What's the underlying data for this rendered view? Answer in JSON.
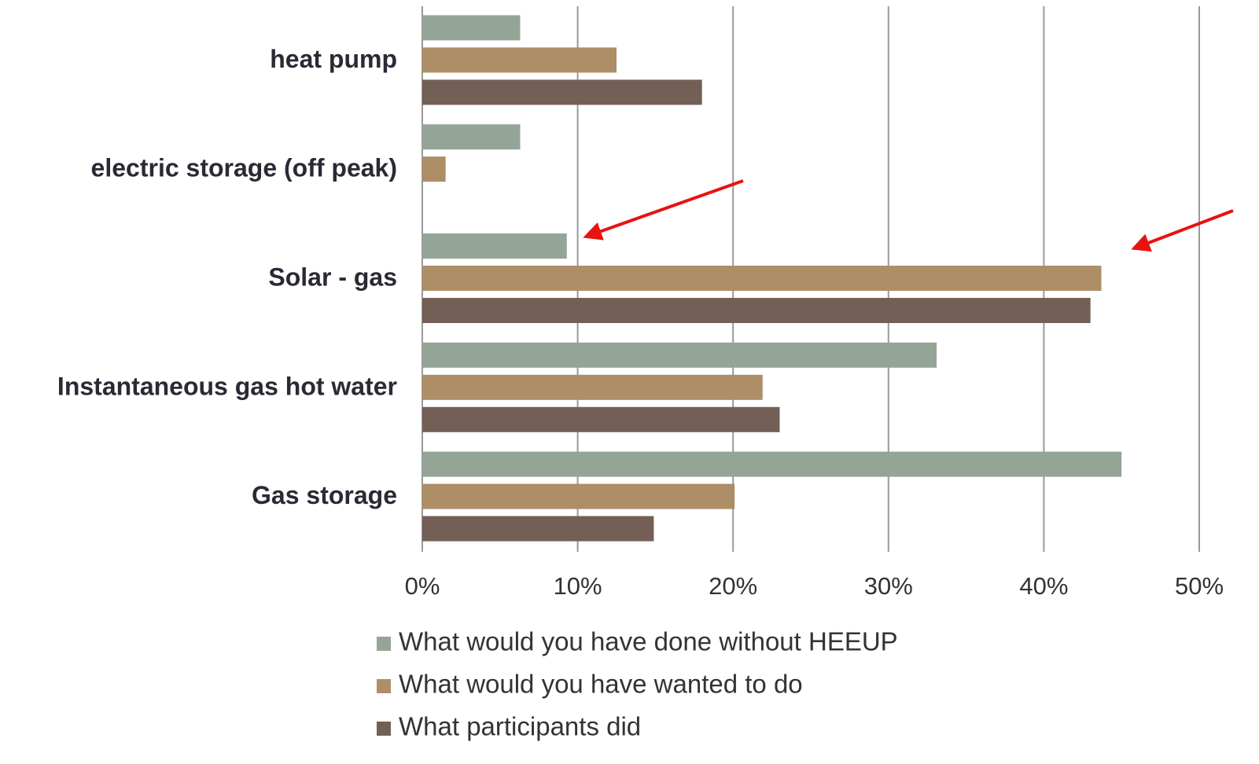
{
  "chart_data": {
    "type": "bar",
    "orientation": "horizontal",
    "categories": [
      "heat pump",
      "electric storage (off peak)",
      "Solar - gas",
      "Instantaneous gas hot water",
      "Gas storage"
    ],
    "series": [
      {
        "name": "What would you have done without HEEUP",
        "color": "#94a598",
        "values": [
          6.3,
          6.3,
          9.3,
          33.1,
          45.0
        ]
      },
      {
        "name": "What would you have wanted to do",
        "color": "#ad8e66",
        "values": [
          12.5,
          1.5,
          43.7,
          21.9,
          20.1
        ]
      },
      {
        "name": "What participants did",
        "color": "#735f55",
        "values": [
          18.0,
          0,
          43.0,
          23.0,
          14.9
        ]
      }
    ],
    "xlim": [
      0,
      50
    ],
    "xticks": [
      {
        "value": 0,
        "label": "0%"
      },
      {
        "value": 10,
        "label": "10%"
      },
      {
        "value": 20,
        "label": "20%"
      },
      {
        "value": 30,
        "label": "30%"
      },
      {
        "value": 40,
        "label": "40%"
      },
      {
        "value": 50,
        "label": "50%"
      }
    ],
    "grid": true,
    "legend": "bottom"
  }
}
